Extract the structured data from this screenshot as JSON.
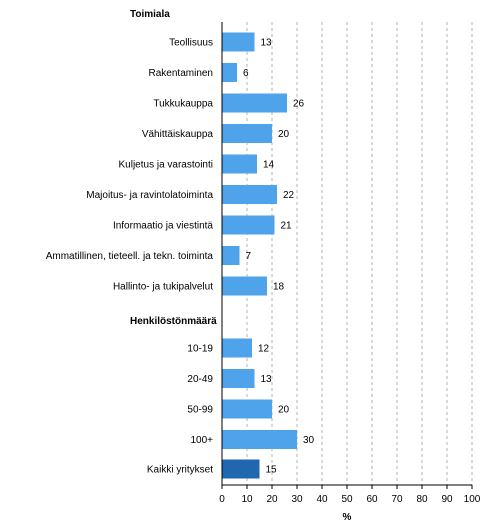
{
  "chart_data": {
    "type": "bar",
    "orientation": "horizontal",
    "xlabel": "%",
    "xlim": [
      0,
      100
    ],
    "xticks": [
      0,
      10,
      20,
      30,
      40,
      50,
      60,
      70,
      80,
      90,
      100
    ],
    "grid": "vertical dashed",
    "colors": {
      "bar": "#4fa3ea",
      "total_bar": "#1f67b1",
      "grid": "#b3b3b3"
    },
    "groups": [
      {
        "title": "Toimiala",
        "categories": [
          "Teollisuus",
          "Rakentaminen",
          "Tukkukauppa",
          "Vähittäiskauppa",
          "Kuljetus ja varastointi",
          "Majoitus- ja ravintolatoiminta",
          "Informaatio ja viestintä",
          "Ammatillinen, tieteell. ja tekn. toiminta",
          "Hallinto- ja tukipalvelut"
        ],
        "values": [
          13,
          6,
          26,
          20,
          14,
          22,
          21,
          7,
          18
        ]
      },
      {
        "title": "Henkilöstönmäärä",
        "categories": [
          "10-19",
          "20-49",
          "50-99",
          "100+"
        ],
        "values": [
          12,
          13,
          20,
          30
        ]
      },
      {
        "title": "",
        "categories": [
          "Kaikki yritykset"
        ],
        "values": [
          15
        ],
        "highlight": true
      }
    ]
  }
}
